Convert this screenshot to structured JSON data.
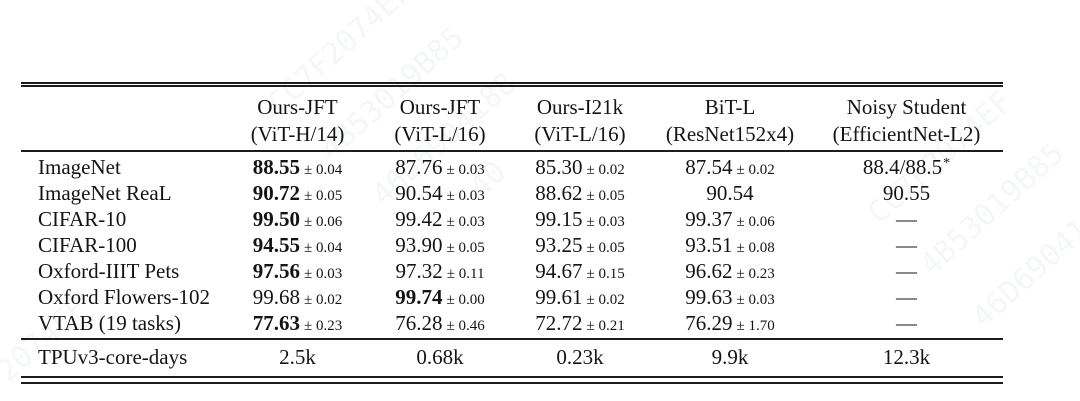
{
  "watermark": {
    "items": [
      "CC7F2074EF",
      "4B53019B85",
      "46D6904188",
      "40",
      "CC7F2074EF",
      "4B53019B85",
      "46D6904188",
      "2074EF"
    ]
  },
  "table": {
    "columns": [
      {
        "line1": "",
        "line2": ""
      },
      {
        "line1": "Ours-JFT",
        "line2": "(ViT-H/14)"
      },
      {
        "line1": "Ours-JFT",
        "line2": "(ViT-L/16)"
      },
      {
        "line1": "Ours-I21k",
        "line2": "(ViT-L/16)"
      },
      {
        "line1": "BiT-L",
        "line2": "(ResNet152x4)"
      },
      {
        "line1": "Noisy Student",
        "line2": "(EfficientNet-L2)"
      }
    ],
    "rows": [
      {
        "label": "ImageNet",
        "cells": [
          {
            "v": "88.55",
            "pm": "± 0.04",
            "bold": true
          },
          {
            "v": "87.76",
            "pm": "± 0.03"
          },
          {
            "v": "85.30",
            "pm": "± 0.02"
          },
          {
            "v": "87.54",
            "pm": "± 0.02"
          },
          {
            "v": "88.4/88.5",
            "sup": "*"
          }
        ]
      },
      {
        "label": "ImageNet ReaL",
        "cells": [
          {
            "v": "90.72",
            "pm": "± 0.05",
            "bold": true
          },
          {
            "v": "90.54",
            "pm": "± 0.03"
          },
          {
            "v": "88.62",
            "pm": "± 0.05"
          },
          {
            "v": "90.54"
          },
          {
            "v": "90.55"
          }
        ]
      },
      {
        "label": "CIFAR-10",
        "cells": [
          {
            "v": "99.50",
            "pm": "± 0.06",
            "bold": true
          },
          {
            "v": "99.42",
            "pm": "± 0.03"
          },
          {
            "v": "99.15",
            "pm": "± 0.03"
          },
          {
            "v": "99.37",
            "pm": "± 0.06"
          },
          {
            "v": "—"
          }
        ]
      },
      {
        "label": "CIFAR-100",
        "cells": [
          {
            "v": "94.55",
            "pm": "± 0.04",
            "bold": true
          },
          {
            "v": "93.90",
            "pm": "± 0.05"
          },
          {
            "v": "93.25",
            "pm": "± 0.05"
          },
          {
            "v": "93.51",
            "pm": "± 0.08"
          },
          {
            "v": "—"
          }
        ]
      },
      {
        "label": "Oxford-IIIT Pets",
        "cells": [
          {
            "v": "97.56",
            "pm": "± 0.03",
            "bold": true
          },
          {
            "v": "97.32",
            "pm": "± 0.11"
          },
          {
            "v": "94.67",
            "pm": "± 0.15"
          },
          {
            "v": "96.62",
            "pm": "± 0.23"
          },
          {
            "v": "—"
          }
        ]
      },
      {
        "label": "Oxford Flowers-102",
        "cells": [
          {
            "v": "99.68",
            "pm": "± 0.02"
          },
          {
            "v": "99.74",
            "pm": "± 0.00",
            "bold": true
          },
          {
            "v": "99.61",
            "pm": "± 0.02"
          },
          {
            "v": "99.63",
            "pm": "± 0.03"
          },
          {
            "v": "—"
          }
        ]
      },
      {
        "label": "VTAB (19 tasks)",
        "cells": [
          {
            "v": "77.63",
            "pm": "± 0.23",
            "bold": true
          },
          {
            "v": "76.28",
            "pm": "± 0.46"
          },
          {
            "v": "72.72",
            "pm": "± 0.21"
          },
          {
            "v": "76.29",
            "pm": "± 1.70"
          },
          {
            "v": "—"
          }
        ]
      }
    ],
    "footer": {
      "label": "TPUv3-core-days",
      "values": [
        "2.5k",
        "0.68k",
        "0.23k",
        "9.9k",
        "12.3k"
      ]
    }
  }
}
